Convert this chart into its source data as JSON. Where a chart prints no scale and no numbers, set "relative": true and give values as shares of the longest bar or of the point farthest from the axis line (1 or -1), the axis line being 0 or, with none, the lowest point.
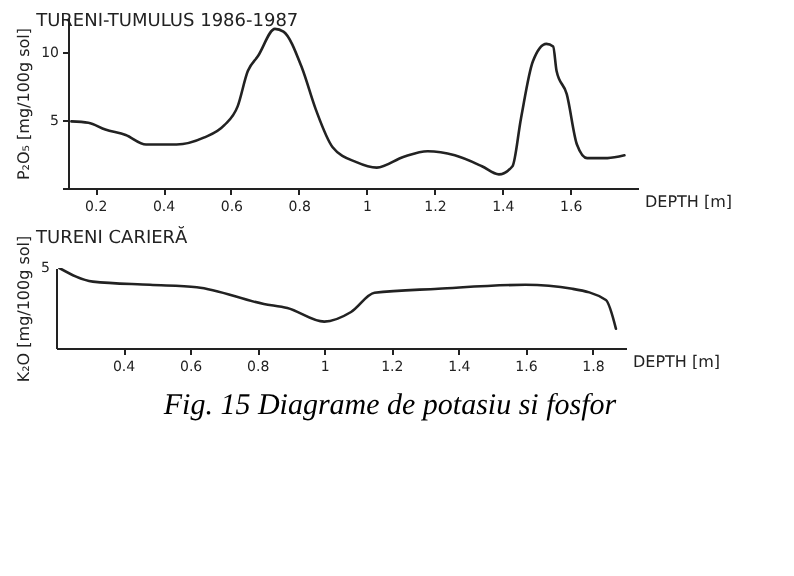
{
  "chart_data": [
    {
      "type": "line",
      "title": "TURENI-TUMULUS 1986-1987",
      "xlabel": "DEPTH [m]",
      "ylabel": "P₂O₅ [mg/100g sol]",
      "x": [
        0.13,
        0.18,
        0.23,
        0.29,
        0.35,
        0.44,
        0.52,
        0.58,
        0.62,
        0.65,
        0.68,
        0.73,
        0.755,
        0.81,
        0.85,
        0.9,
        0.97,
        1.03,
        1.11,
        1.18,
        1.26,
        1.34,
        1.39,
        1.43,
        1.455,
        1.49,
        1.53,
        1.55,
        1.56,
        1.59,
        1.62,
        1.65,
        1.71,
        1.76
      ],
      "series": [
        {
          "color": "#222222",
          "values": [
            4.9,
            4.8,
            4.3,
            3.9,
            3.2,
            3.2,
            3.7,
            4.6,
            6.0,
            8.6,
            9.7,
            11.7,
            11.5,
            8.8,
            5.8,
            3.0,
            1.9,
            1.5,
            2.3,
            2.7,
            2.4,
            1.6,
            1.0,
            1.6,
            5.1,
            9.3,
            10.6,
            10.4,
            8.6,
            6.9,
            3.2,
            2.2,
            2.2,
            2.4
          ]
        }
      ],
      "xlim": [
        0.12,
        1.8
      ],
      "xticks": [
        0.2,
        0.4,
        0.6,
        0.8,
        1.0,
        1.2,
        1.4,
        1.6
      ],
      "ylim": [
        0,
        12.5
      ],
      "yticks": [
        {
          "value": 0,
          "label": null
        },
        5,
        10
      ],
      "line_style": "solid"
    },
    {
      "type": "line",
      "title": "TURENI CARIERĂ",
      "xlabel": "DEPTH [m]",
      "ylabel": "K₂O [mg/100g sol]",
      "relative": true,
      "x": [
        0.21,
        0.31,
        0.48,
        0.62,
        0.82,
        0.89,
        1.0,
        1.08,
        1.15,
        1.34,
        1.6,
        1.74,
        1.84,
        1.87
      ],
      "series": [
        {
          "color": "#222222",
          "values": [
            1,
            0.83,
            0.79,
            0.76,
            0.55,
            0.5,
            0.33,
            0.45,
            0.69,
            0.74,
            0.79,
            0.74,
            0.6,
            0.24
          ]
        }
      ],
      "xlim": [
        0.2,
        1.9
      ],
      "xticks": [
        0.4,
        0.6,
        0.8,
        1.0,
        1.2,
        1.4,
        1.6,
        1.8
      ],
      "line_style": "solid",
      "annotations": [
        "5",
        "Fig. 15 Diagrame de potasiu si fosfor"
      ]
    }
  ]
}
